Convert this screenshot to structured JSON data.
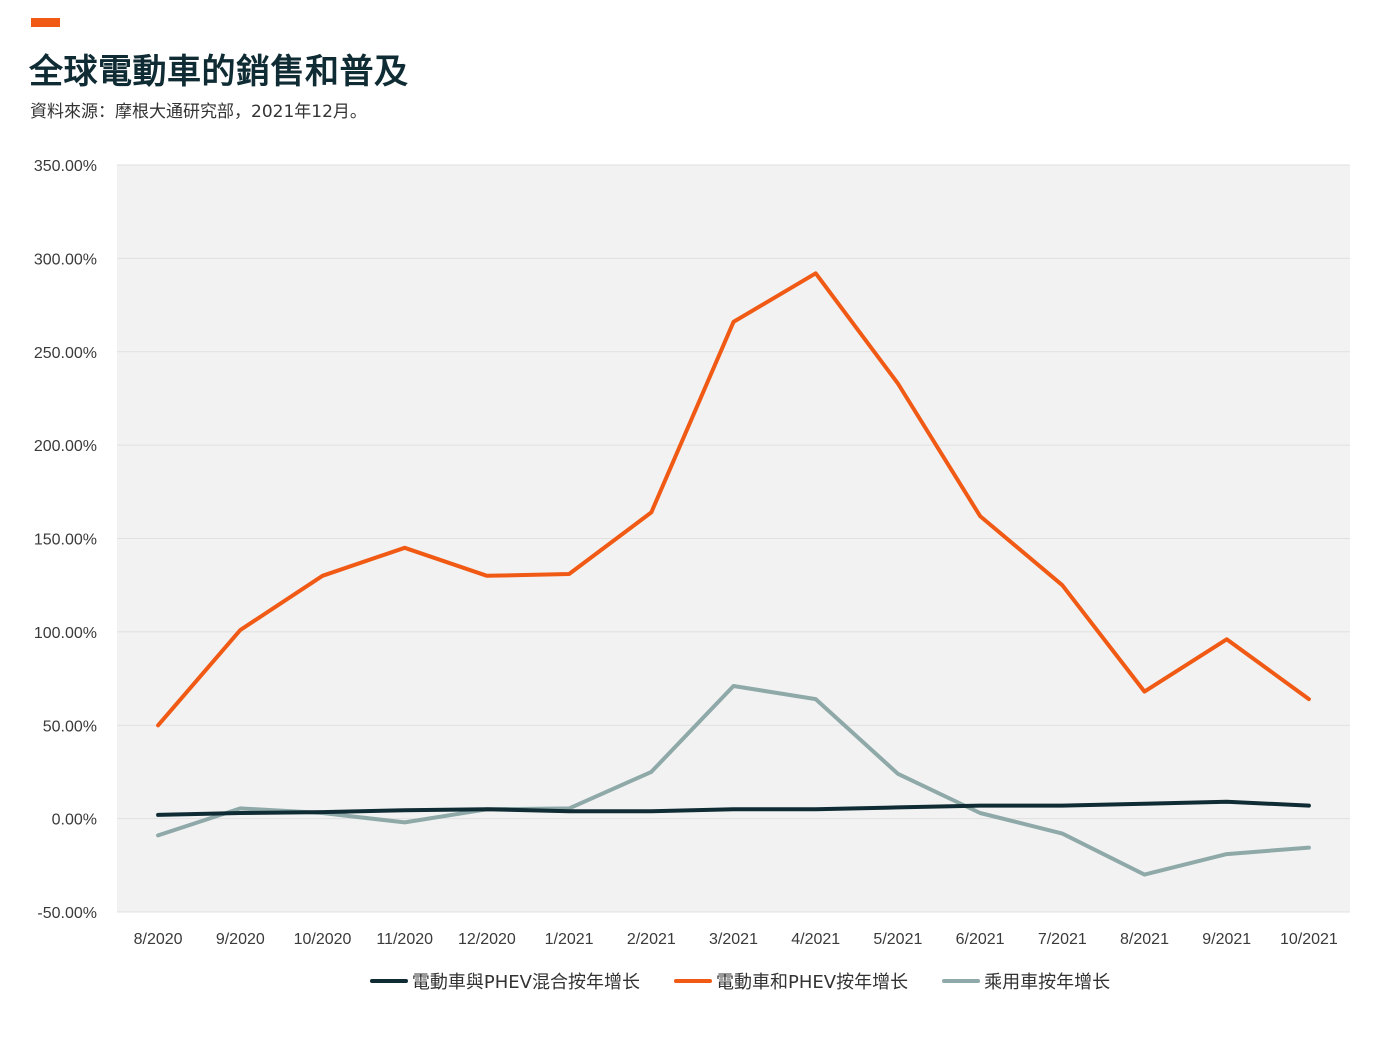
{
  "header": {
    "title": "全球電動車的銷售和普及",
    "source": "資料來源：摩根大通研究部，2021年12月。"
  },
  "colors": {
    "accent": "#f05a14",
    "plot_background": "#f2f2f2",
    "grid": "#e0e0e0"
  },
  "chart_data": {
    "type": "line",
    "title": "全球電動車的銷售和普及",
    "xlabel": "",
    "ylabel": "",
    "ylim": [
      -50,
      350
    ],
    "yticks": [
      -50,
      0,
      50,
      100,
      150,
      200,
      250,
      300,
      350
    ],
    "ytick_labels": [
      "-50.00%",
      "0.00%",
      "50.00%",
      "100.00%",
      "150.00%",
      "200.00%",
      "250.00%",
      "300.00%",
      "350.00%"
    ],
    "categories": [
      "8/2020",
      "9/2020",
      "10/2020",
      "11/2020",
      "12/2020",
      "1/2021",
      "2/2021",
      "3/2021",
      "4/2021",
      "5/2021",
      "6/2021",
      "7/2021",
      "8/2021",
      "9/2021",
      "10/2021"
    ],
    "grid": true,
    "legend_position": "bottom",
    "series": [
      {
        "name": "電動車與PHEV混合按年增长",
        "color": "#0f2b33",
        "values": [
          2,
          3,
          3.5,
          4.5,
          5,
          4,
          4,
          5,
          5,
          6,
          7,
          7,
          8,
          9,
          7
        ]
      },
      {
        "name": "電動車和PHEV按年增长",
        "color": "#f05a14",
        "values": [
          50,
          101,
          130,
          145,
          130,
          131,
          164,
          266,
          292,
          233,
          162,
          125,
          68,
          96,
          64
        ]
      },
      {
        "name": "乘用車按年增长",
        "color": "#8fa9a9",
        "values": [
          -9,
          5.5,
          3,
          -2,
          5,
          5.5,
          25,
          71,
          64,
          24,
          3,
          -8,
          -30,
          -19,
          -15.5
        ]
      }
    ]
  }
}
